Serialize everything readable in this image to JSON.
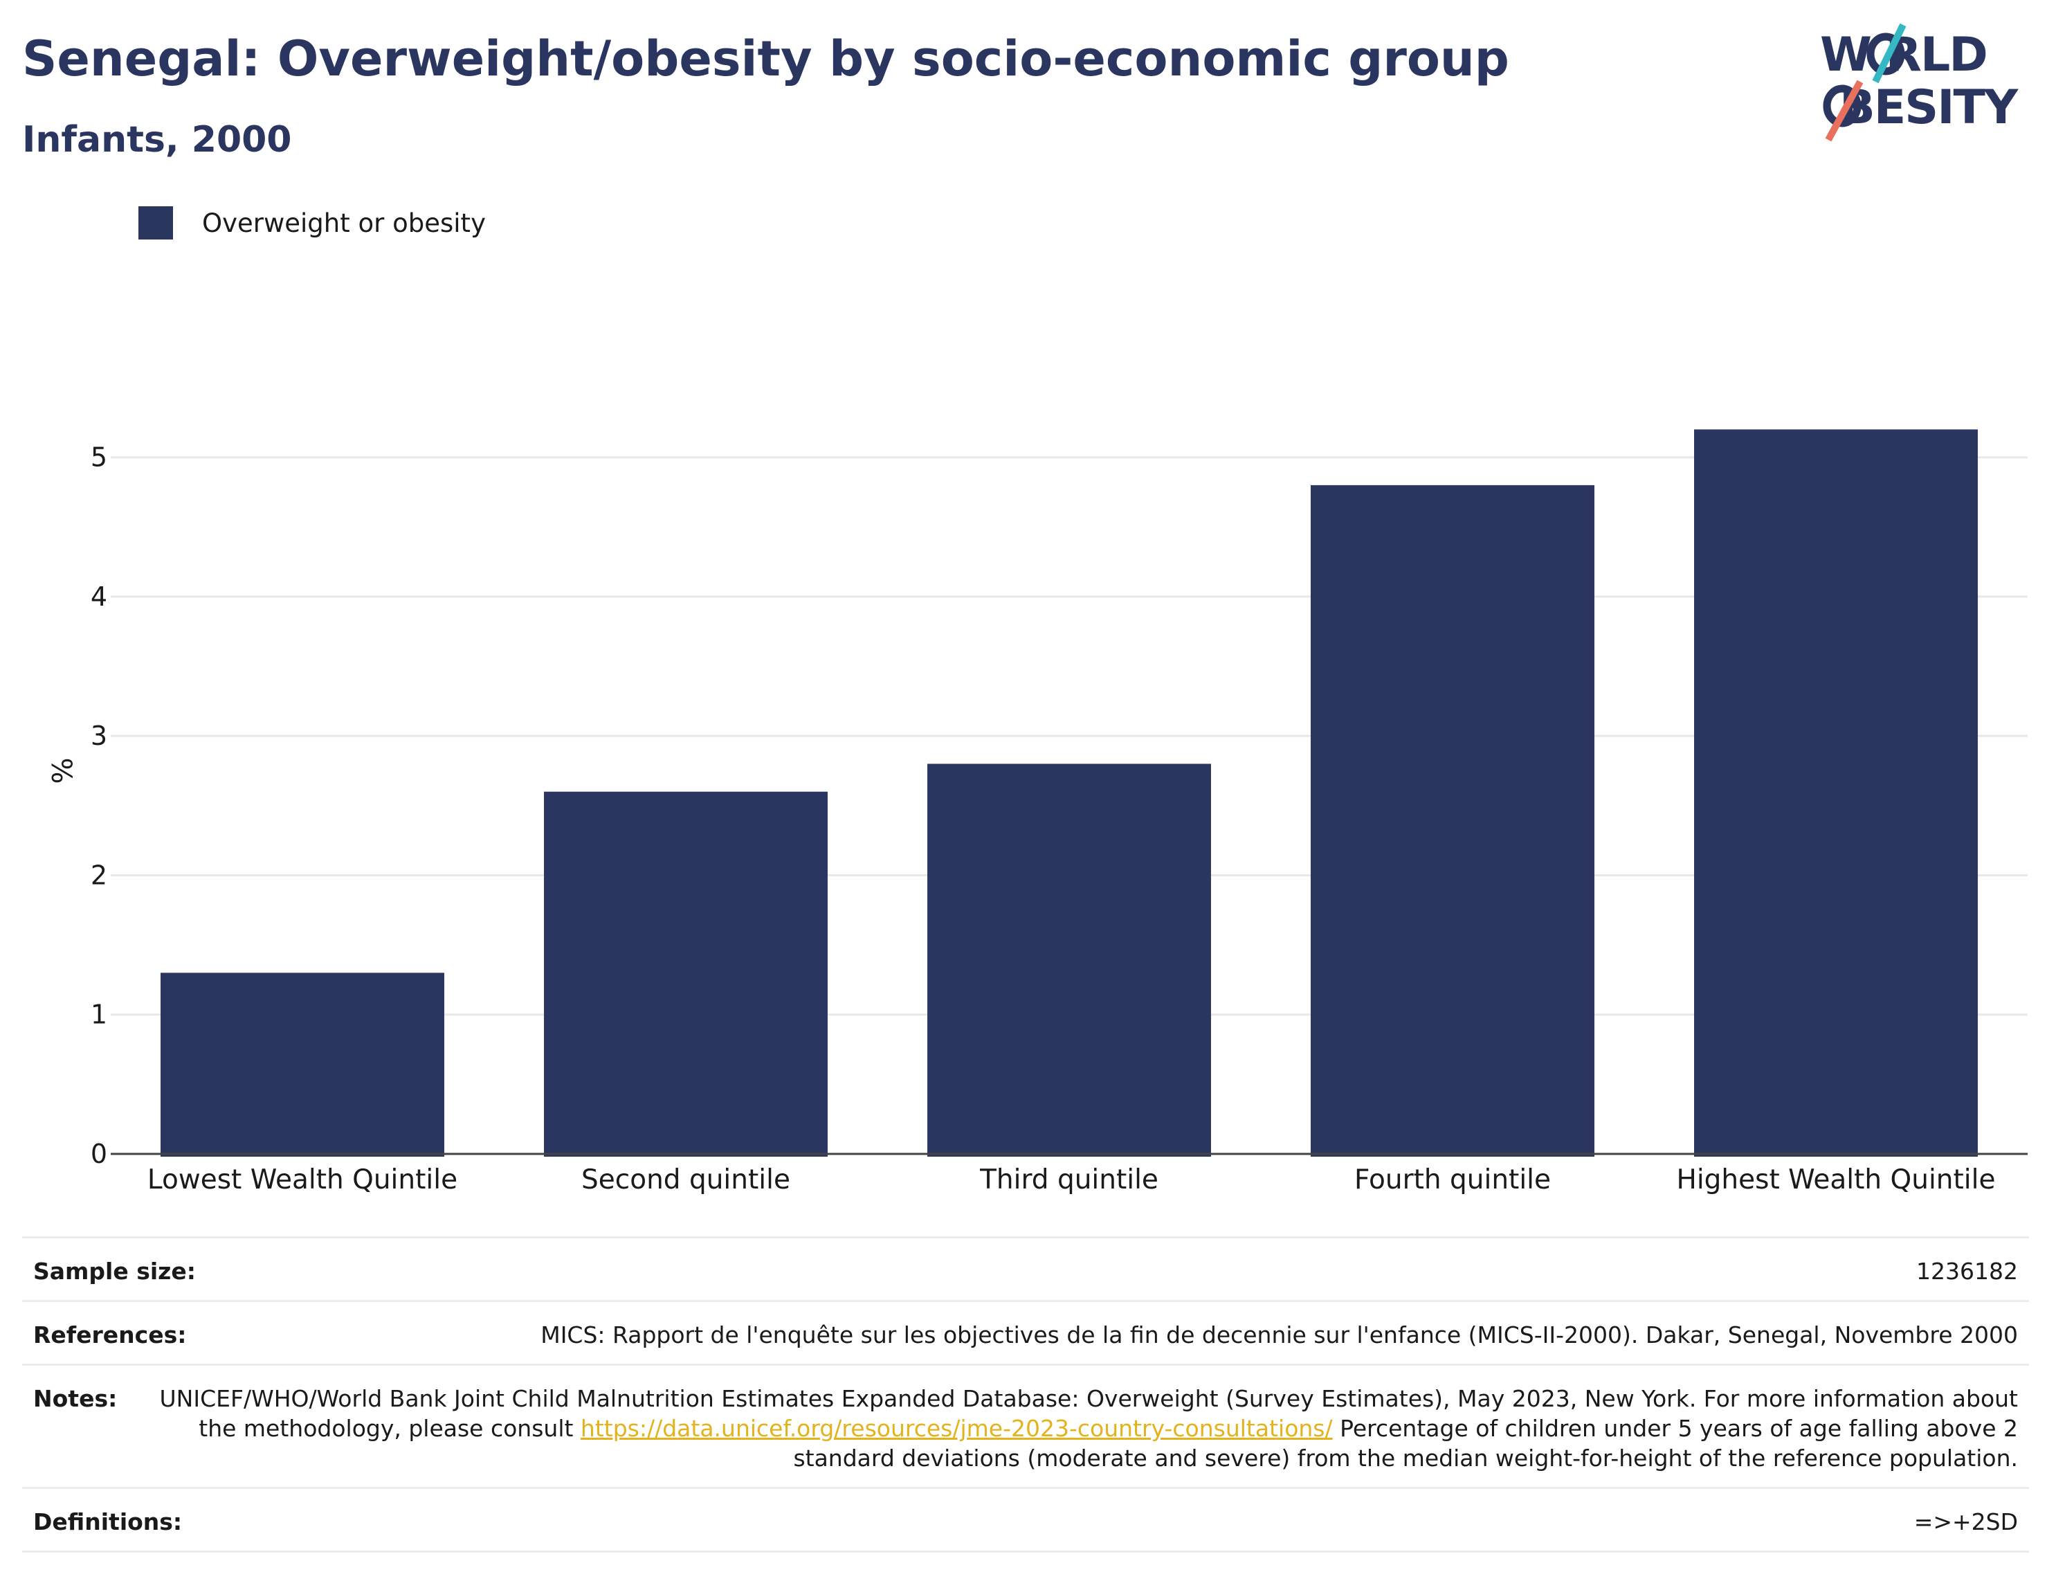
{
  "header": {
    "title": "Senegal: Overweight/obesity by socio-economic group",
    "subtitle": "Infants, 2000"
  },
  "logo": {
    "line1": "W RLD",
    "line2": "BESITY",
    "text": "WORLD OBESITY",
    "colors": {
      "text": "#2a3560",
      "slash_top": "#35b8c4",
      "slash_bottom": "#e8705d"
    }
  },
  "legend": {
    "label": "Overweight or obesity",
    "color": "#2a3560"
  },
  "chart_data": {
    "type": "bar",
    "title": "Senegal: Overweight/obesity by socio-economic group",
    "subtitle": "Infants, 2000",
    "ylabel": "%",
    "xlabel": "",
    "categories": [
      "Lowest Wealth Quintile",
      "Second quintile",
      "Third quintile",
      "Fourth quintile",
      "Highest Wealth Quintile"
    ],
    "series": [
      {
        "name": "Overweight or obesity",
        "values": [
          1.3,
          2.6,
          2.8,
          4.8,
          5.2
        ],
        "color": "#2a3560"
      }
    ],
    "ylim": [
      0,
      5.5
    ],
    "yticks": [
      0,
      1,
      2,
      3,
      4,
      5
    ],
    "grid": true,
    "legend_position": "top-left"
  },
  "info": {
    "sample_size": {
      "label": "Sample size:",
      "value": "1236182"
    },
    "references": {
      "label": "References:",
      "value": "MICS: Rapport de l'enquête sur les objectives de la fin de decennie sur l'enfance (MICS-II-2000). Dakar, Senegal, Novembre 2000"
    },
    "notes": {
      "label": "Notes:",
      "text_before_link": "UNICEF/WHO/World Bank Joint Child Malnutrition Estimates Expanded Database: Overweight (Survey Estimates), May 2023, New York. For more information about the methodology, please consult ",
      "link": "https://data.unicef.org/resources/jme-2023-country-consultations/",
      "text_after_link": " Percentage of children under 5 years of age falling above 2 standard deviations (moderate and severe) from the median weight-for-height of the reference population."
    },
    "definitions": {
      "label": "Definitions:",
      "value": "=>+2SD"
    }
  }
}
